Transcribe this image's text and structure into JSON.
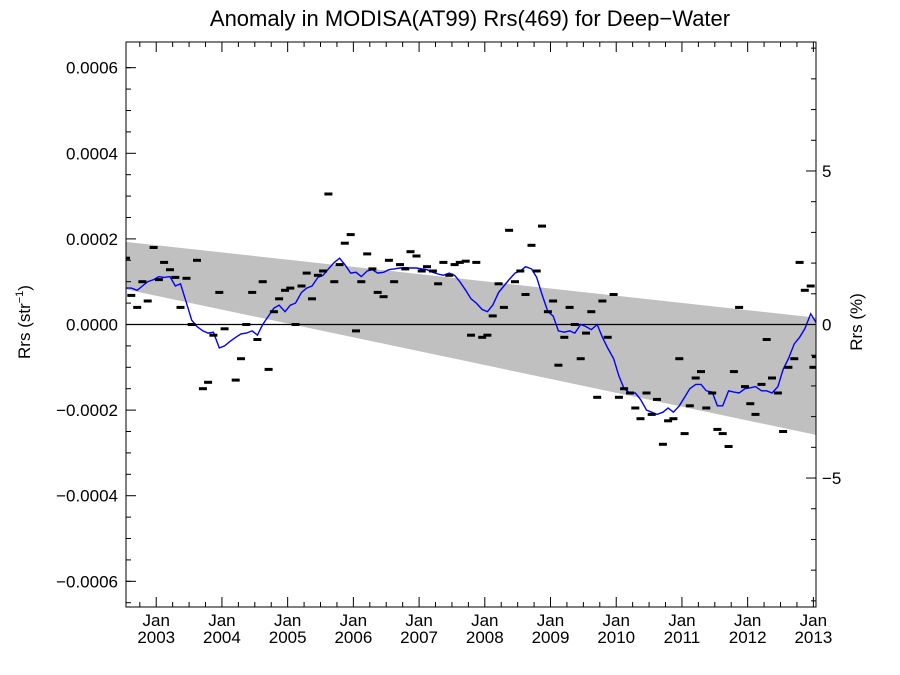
{
  "chart_data": {
    "type": "scatter",
    "title": "Anomaly in MODISA(AT99) Rrs(469) for Deep−Water",
    "ylabel_left_main": "Rrs (str",
    "ylabel_left_sup": "−1",
    "ylabel_left_close": ")",
    "ylabel_right": "Rrs (%)",
    "xlim": [
      2002.54,
      2013.04
    ],
    "ylim": [
      -0.00066,
      0.00066
    ],
    "y2lim": [
      -9.2,
      9.2
    ],
    "yticks": [
      {
        "v": -0.0006,
        "label": "−0.0006"
      },
      {
        "v": -0.0004,
        "label": "−0.0004"
      },
      {
        "v": -0.0002,
        "label": "−0.0002"
      },
      {
        "v": 0.0,
        "label": "0.0000"
      },
      {
        "v": 0.0002,
        "label": "0.0002"
      },
      {
        "v": 0.0004,
        "label": "0.0004"
      },
      {
        "v": 0.0006,
        "label": "0.0006"
      }
    ],
    "y2ticks": [
      {
        "v": -5,
        "label": "−5"
      },
      {
        "v": 0,
        "label": "0"
      },
      {
        "v": 5,
        "label": "5"
      }
    ],
    "xticks": [
      {
        "v": 2003.0,
        "month": "Jan",
        "year": "2003"
      },
      {
        "v": 2004.0,
        "month": "Jan",
        "year": "2004"
      },
      {
        "v": 2005.0,
        "month": "Jan",
        "year": "2005"
      },
      {
        "v": 2006.0,
        "month": "Jan",
        "year": "2006"
      },
      {
        "v": 2007.0,
        "month": "Jan",
        "year": "2007"
      },
      {
        "v": 2008.0,
        "month": "Jan",
        "year": "2008"
      },
      {
        "v": 2009.0,
        "month": "Jan",
        "year": "2009"
      },
      {
        "v": 2010.0,
        "month": "Jan",
        "year": "2010"
      },
      {
        "v": 2011.0,
        "month": "Jan",
        "year": "2011"
      },
      {
        "v": 2012.0,
        "month": "Jan",
        "year": "2012"
      },
      {
        "v": 2013.0,
        "month": "Jan",
        "year": "2013"
      }
    ],
    "band": {
      "x": [
        2002.54,
        2013.04
      ],
      "upper": [
        0.000193,
        1.6e-05
      ],
      "lower": [
        8.2e-05,
        -0.000258
      ]
    },
    "reference_line": 0.0,
    "colors": {
      "band": "#c0c0c0",
      "smooth": "#0000ff",
      "points": "#000000",
      "axis": "#000000"
    },
    "points": [
      [
        2002.54,
        0.000155
      ],
      [
        2002.62,
        6.8e-05
      ],
      [
        2002.71,
        4e-05
      ],
      [
        2002.79,
        0.0001
      ],
      [
        2002.87,
        5.5e-05
      ],
      [
        2002.96,
        0.00018
      ],
      [
        2003.04,
        0.000105
      ],
      [
        2003.12,
        0.000145
      ],
      [
        2003.21,
        0.000128
      ],
      [
        2003.29,
        0.00011
      ],
      [
        2003.37,
        4e-05
      ],
      [
        2003.46,
        0.000108
      ],
      [
        2003.54,
        0.0
      ],
      [
        2003.62,
        0.00015
      ],
      [
        2003.71,
        -0.00015
      ],
      [
        2003.79,
        -0.000135
      ],
      [
        2003.87,
        -2.5e-05
      ],
      [
        2003.96,
        7.5e-05
      ],
      [
        2004.04,
        -1e-05
      ],
      [
        2004.21,
        -0.00013
      ],
      [
        2004.29,
        -8e-05
      ],
      [
        2004.37,
        0.0
      ],
      [
        2004.46,
        7.5e-05
      ],
      [
        2004.54,
        -3.5e-05
      ],
      [
        2004.62,
        0.0001
      ],
      [
        2004.71,
        -0.000105
      ],
      [
        2004.79,
        3e-05
      ],
      [
        2004.87,
        6e-05
      ],
      [
        2004.96,
        8e-05
      ],
      [
        2005.04,
        8.5e-05
      ],
      [
        2005.12,
        0.0
      ],
      [
        2005.21,
        9e-05
      ],
      [
        2005.29,
        0.00012
      ],
      [
        2005.37,
        6e-05
      ],
      [
        2005.46,
        0.000115
      ],
      [
        2005.54,
        0.000125
      ],
      [
        2005.62,
        0.000305
      ],
      [
        2005.71,
        0.0001
      ],
      [
        2005.79,
        0.00014
      ],
      [
        2005.87,
        0.00019
      ],
      [
        2005.96,
        0.00021
      ],
      [
        2006.04,
        -1.5e-05
      ],
      [
        2006.12,
        0.0001
      ],
      [
        2006.21,
        0.000165
      ],
      [
        2006.29,
        0.00013
      ],
      [
        2006.37,
        7.5e-05
      ],
      [
        2006.46,
        6.5e-05
      ],
      [
        2006.54,
        0.00015
      ],
      [
        2006.62,
        0.0001
      ],
      [
        2006.71,
        0.00014
      ],
      [
        2006.79,
        0.00013
      ],
      [
        2006.87,
        0.00017
      ],
      [
        2006.96,
        0.00016
      ],
      [
        2007.04,
        0.000125
      ],
      [
        2007.12,
        0.000135
      ],
      [
        2007.21,
        0.000125
      ],
      [
        2007.29,
        9.5e-05
      ],
      [
        2007.37,
        0.000145
      ],
      [
        2007.46,
        0.000115
      ],
      [
        2007.54,
        0.00014
      ],
      [
        2007.62,
        0.000145
      ],
      [
        2007.71,
        0.000148
      ],
      [
        2007.79,
        -2.5e-05
      ],
      [
        2007.87,
        0.000145
      ],
      [
        2007.96,
        -3e-05
      ],
      [
        2008.04,
        -2.5e-05
      ],
      [
        2008.12,
        2e-05
      ],
      [
        2008.21,
        9.5e-05
      ],
      [
        2008.29,
        4e-05
      ],
      [
        2008.37,
        0.00022
      ],
      [
        2008.46,
        0.0001
      ],
      [
        2008.54,
        0.000125
      ],
      [
        2008.62,
        7e-05
      ],
      [
        2008.71,
        0.000185
      ],
      [
        2008.79,
        0.000125
      ],
      [
        2008.87,
        0.00023
      ],
      [
        2008.96,
        3e-05
      ],
      [
        2009.04,
        5.5e-05
      ],
      [
        2009.12,
        -9.5e-05
      ],
      [
        2009.21,
        -3e-05
      ],
      [
        2009.29,
        4e-05
      ],
      [
        2009.37,
        0.0
      ],
      [
        2009.46,
        -8e-05
      ],
      [
        2009.54,
        -2e-05
      ],
      [
        2009.62,
        3e-05
      ],
      [
        2009.71,
        -0.00017
      ],
      [
        2009.79,
        5.5e-05
      ],
      [
        2009.87,
        -3e-05
      ],
      [
        2009.96,
        7e-05
      ],
      [
        2010.04,
        -0.00017
      ],
      [
        2010.12,
        -0.00015
      ],
      [
        2010.21,
        -0.00016
      ],
      [
        2010.29,
        -0.000195
      ],
      [
        2010.37,
        -0.00022
      ],
      [
        2010.46,
        -0.00016
      ],
      [
        2010.54,
        -0.00021
      ],
      [
        2010.62,
        -0.000175
      ],
      [
        2010.71,
        -0.00028
      ],
      [
        2010.79,
        -0.000225
      ],
      [
        2010.87,
        -0.00022
      ],
      [
        2010.96,
        -8e-05
      ],
      [
        2011.04,
        -0.000255
      ],
      [
        2011.12,
        -0.00019
      ],
      [
        2011.21,
        -0.000125
      ],
      [
        2011.29,
        -0.00011
      ],
      [
        2011.37,
        -0.000195
      ],
      [
        2011.46,
        -0.00016
      ],
      [
        2011.54,
        -0.000245
      ],
      [
        2011.62,
        -0.000255
      ],
      [
        2011.71,
        -0.000285
      ],
      [
        2011.79,
        -0.00011
      ],
      [
        2011.87,
        4e-05
      ],
      [
        2011.96,
        -0.000145
      ],
      [
        2012.04,
        -0.000185
      ],
      [
        2012.12,
        -0.00021
      ],
      [
        2012.21,
        -0.00014
      ],
      [
        2012.29,
        -3.5e-05
      ],
      [
        2012.37,
        -0.000125
      ],
      [
        2012.46,
        -0.00016
      ],
      [
        2012.54,
        -0.00025
      ],
      [
        2012.62,
        -0.0001
      ],
      [
        2012.71,
        -8e-05
      ],
      [
        2012.79,
        0.000145
      ],
      [
        2012.87,
        8e-05
      ],
      [
        2012.96,
        9e-05
      ],
      [
        2013.0,
        -0.0001
      ],
      [
        2013.04,
        -7.5e-05
      ]
    ],
    "smooth": [
      [
        2002.54,
        8.5e-05
      ],
      [
        2002.62,
        8.5e-05
      ],
      [
        2002.71,
        8e-05
      ],
      [
        2002.79,
        9e-05
      ],
      [
        2002.87,
        0.0001
      ],
      [
        2002.96,
        0.000105
      ],
      [
        2003.04,
        0.000112
      ],
      [
        2003.12,
        0.00011
      ],
      [
        2003.21,
        0.000112
      ],
      [
        2003.29,
        9e-05
      ],
      [
        2003.37,
        9.5e-05
      ],
      [
        2003.46,
        5e-05
      ],
      [
        2003.54,
        1e-05
      ],
      [
        2003.62,
        -5e-06
      ],
      [
        2003.71,
        -1.5e-05
      ],
      [
        2003.79,
        -2e-05
      ],
      [
        2003.87,
        -1.8e-05
      ],
      [
        2003.96,
        -5.5e-05
      ],
      [
        2004.04,
        -5e-05
      ],
      [
        2004.12,
        -4e-05
      ],
      [
        2004.21,
        -3e-05
      ],
      [
        2004.29,
        -2.2e-05
      ],
      [
        2004.37,
        -2e-05
      ],
      [
        2004.46,
        -1.5e-05
      ],
      [
        2004.54,
        -2.5e-05
      ],
      [
        2004.62,
        0.0
      ],
      [
        2004.71,
        2e-05
      ],
      [
        2004.79,
        3.8e-05
      ],
      [
        2004.87,
        4.5e-05
      ],
      [
        2004.96,
        3e-05
      ],
      [
        2005.04,
        4.5e-05
      ],
      [
        2005.12,
        5e-05
      ],
      [
        2005.21,
        7.5e-05
      ],
      [
        2005.29,
        8.5e-05
      ],
      [
        2005.37,
        9e-05
      ],
      [
        2005.46,
        0.00011
      ],
      [
        2005.54,
        0.000115
      ],
      [
        2005.62,
        0.00013
      ],
      [
        2005.71,
        0.000145
      ],
      [
        2005.79,
        0.000155
      ],
      [
        2005.87,
        0.00014
      ],
      [
        2005.96,
        0.00012
      ],
      [
        2006.04,
        0.000122
      ],
      [
        2006.12,
        0.000112
      ],
      [
        2006.21,
        0.000125
      ],
      [
        2006.29,
        0.000128
      ],
      [
        2006.37,
        0.00012
      ],
      [
        2006.46,
        0.000122
      ],
      [
        2006.54,
        0.000128
      ],
      [
        2006.62,
        0.00013
      ],
      [
        2006.71,
        0.000132
      ],
      [
        2006.79,
        0.000133
      ],
      [
        2006.87,
        0.000132
      ],
      [
        2006.96,
        0.000132
      ],
      [
        2007.04,
        0.00013
      ],
      [
        2007.12,
        0.000128
      ],
      [
        2007.21,
        0.000122
      ],
      [
        2007.29,
        0.000118
      ],
      [
        2007.37,
        0.000115
      ],
      [
        2007.46,
        0.00012
      ],
      [
        2007.54,
        0.000115
      ],
      [
        2007.62,
        0.0001
      ],
      [
        2007.71,
        8e-05
      ],
      [
        2007.79,
        6e-05
      ],
      [
        2007.87,
        5e-05
      ],
      [
        2007.96,
        3.5e-05
      ],
      [
        2008.04,
        3e-05
      ],
      [
        2008.12,
        4.5e-05
      ],
      [
        2008.21,
        7.5e-05
      ],
      [
        2008.29,
        9e-05
      ],
      [
        2008.37,
        0.000105
      ],
      [
        2008.46,
        0.00012
      ],
      [
        2008.54,
        0.000125
      ],
      [
        2008.62,
        0.000135
      ],
      [
        2008.71,
        0.00013
      ],
      [
        2008.79,
        0.00011
      ],
      [
        2008.87,
        7e-05
      ],
      [
        2008.96,
        3e-05
      ],
      [
        2009.04,
        2e-05
      ],
      [
        2009.12,
        -1.5e-05
      ],
      [
        2009.21,
        -1.8e-05
      ],
      [
        2009.29,
        -1.5e-05
      ],
      [
        2009.37,
        -2e-05
      ],
      [
        2009.46,
        0.0
      ],
      [
        2009.54,
        -5e-06
      ],
      [
        2009.62,
        -1.2e-05
      ],
      [
        2009.71,
        0.0
      ],
      [
        2009.79,
        -3e-05
      ],
      [
        2009.87,
        -5.5e-05
      ],
      [
        2009.96,
        -8e-05
      ],
      [
        2010.04,
        -0.00012
      ],
      [
        2010.12,
        -0.00015
      ],
      [
        2010.21,
        -0.00016
      ],
      [
        2010.29,
        -0.00016
      ],
      [
        2010.37,
        -0.000175
      ],
      [
        2010.46,
        -0.0002
      ],
      [
        2010.54,
        -0.000205
      ],
      [
        2010.62,
        -0.00021
      ],
      [
        2010.71,
        -0.000205
      ],
      [
        2010.79,
        -0.000195
      ],
      [
        2010.87,
        -0.000205
      ],
      [
        2010.96,
        -0.00019
      ],
      [
        2011.04,
        -0.00017
      ],
      [
        2011.12,
        -0.00015
      ],
      [
        2011.21,
        -0.00014
      ],
      [
        2011.29,
        -0.00014
      ],
      [
        2011.37,
        -0.000155
      ],
      [
        2011.46,
        -0.000158
      ],
      [
        2011.54,
        -0.00019
      ],
      [
        2011.62,
        -0.00019
      ],
      [
        2011.71,
        -0.000155
      ],
      [
        2011.79,
        -0.000158
      ],
      [
        2011.87,
        -0.00016
      ],
      [
        2011.96,
        -0.00015
      ],
      [
        2012.04,
        -0.000148
      ],
      [
        2012.12,
        -0.000145
      ],
      [
        2012.21,
        -0.000155
      ],
      [
        2012.29,
        -0.000155
      ],
      [
        2012.37,
        -0.00016
      ],
      [
        2012.46,
        -0.000145
      ],
      [
        2012.54,
        -0.000105
      ],
      [
        2012.62,
        -8e-05
      ],
      [
        2012.71,
        -4.5e-05
      ],
      [
        2012.79,
        -3e-05
      ],
      [
        2012.87,
        -1e-05
      ],
      [
        2012.96,
        2.5e-05
      ],
      [
        2013.04,
        5e-06
      ]
    ]
  }
}
